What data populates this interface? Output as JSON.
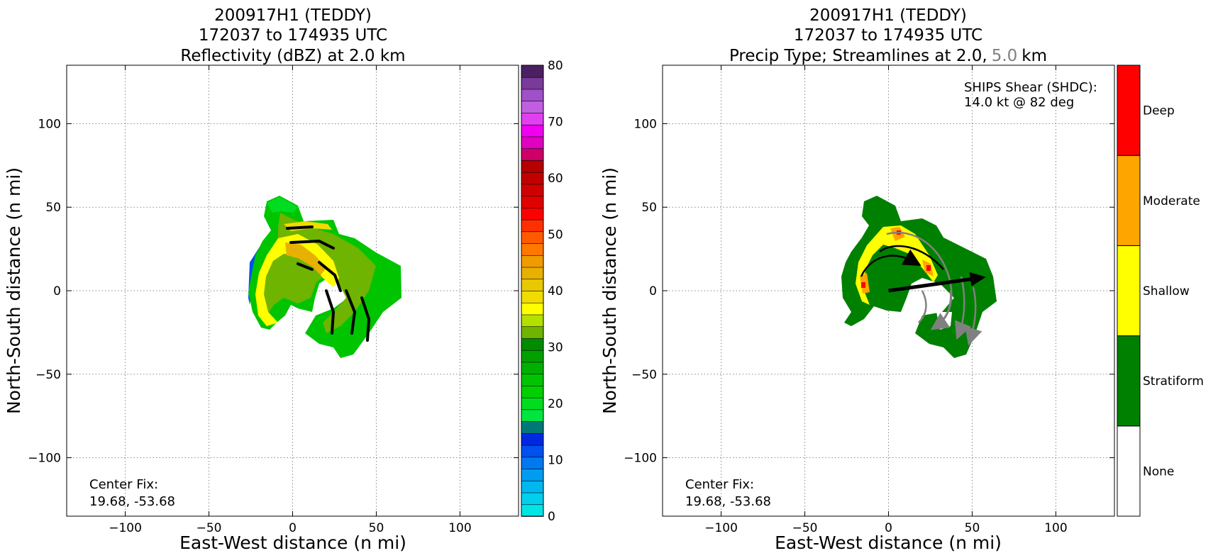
{
  "colors": {
    "deep": "#ff0000",
    "moderate": "#ffa500",
    "shallow": "#ffff00",
    "stratiform": "#008000",
    "none": "#ffffff",
    "streamline_low": "#000000",
    "streamline_high": "#808080",
    "shear_arrow": "#000000"
  },
  "chart_data": [
    {
      "type": "heatmap",
      "title": [
        "200917H1 (TEDDY)",
        "172037 to 174935 UTC",
        "Reflectivity (dBZ) at 2.0 km"
      ],
      "xlabel": "East-West distance (n mi)",
      "ylabel": "North-South distance (n mi)",
      "xlim": [
        -135,
        135
      ],
      "ylim": [
        -135,
        135
      ],
      "xticks": [
        -100,
        -50,
        0,
        50,
        100
      ],
      "yticks": [
        -100,
        -50,
        0,
        50,
        100
      ],
      "xtick_labels": [
        "−100",
        "−50",
        "0",
        "50",
        "100"
      ],
      "ytick_labels": [
        "−100",
        "−50",
        "0",
        "50",
        "100"
      ],
      "grid": true,
      "annotation": [
        "Center Fix:",
        "19.68, -53.68"
      ],
      "colorbar": {
        "min": 0,
        "max": 80,
        "step": 2.5,
        "ticks": [
          "0",
          "10",
          "20",
          "30",
          "40",
          "50",
          "60",
          "70",
          "80"
        ],
        "colors": [
          "#00e5e5",
          "#00cfee",
          "#00b8f0",
          "#009cf0",
          "#0078f0",
          "#0050f0",
          "#0028e0",
          "#007878",
          "#00e640",
          "#00dc20",
          "#00d000",
          "#00c400",
          "#00b000",
          "#00a000",
          "#008c00",
          "#6eb400",
          "#b4e000",
          "#ffff00",
          "#f0dc00",
          "#e8c800",
          "#e8b000",
          "#f09c00",
          "#ff7800",
          "#ff5a00",
          "#ff3000",
          "#ff0000",
          "#e00000",
          "#d00000",
          "#c00000",
          "#b40000",
          "#cc0066",
          "#e000c0",
          "#f000f0",
          "#e040f0",
          "#c060e0",
          "#a050c8",
          "#7a3a9a",
          "#4a2060"
        ]
      }
    },
    {
      "type": "heatmap",
      "title": [
        "200917H1 (TEDDY)",
        "172037 to 174935 UTC",
        "Precip Type; Streamlines at 2.0,",
        "5.0",
        "km"
      ],
      "xlabel": "East-West distance (n mi)",
      "ylabel": "North-South distance (n mi)",
      "xlim": [
        -135,
        135
      ],
      "ylim": [
        -135,
        135
      ],
      "xticks": [
        -100,
        -50,
        0,
        50,
        100
      ],
      "yticks": [
        -100,
        -50,
        0,
        50,
        100
      ],
      "xtick_labels": [
        "−100",
        "−50",
        "0",
        "50",
        "100"
      ],
      "ytick_labels": [
        "−100",
        "−50",
        "0",
        "50",
        "100"
      ],
      "grid": true,
      "annotation": [
        "Center Fix:",
        "19.68, -53.68"
      ],
      "shear_text": [
        "SHIPS Shear (SHDC):",
        "14.0 kt @ 82 deg"
      ],
      "shear_vector": {
        "speed_kt": 14.0,
        "direction_deg": 82
      },
      "categories": [
        "None",
        "Stratiform",
        "Shallow",
        "Moderate",
        "Deep"
      ]
    }
  ]
}
